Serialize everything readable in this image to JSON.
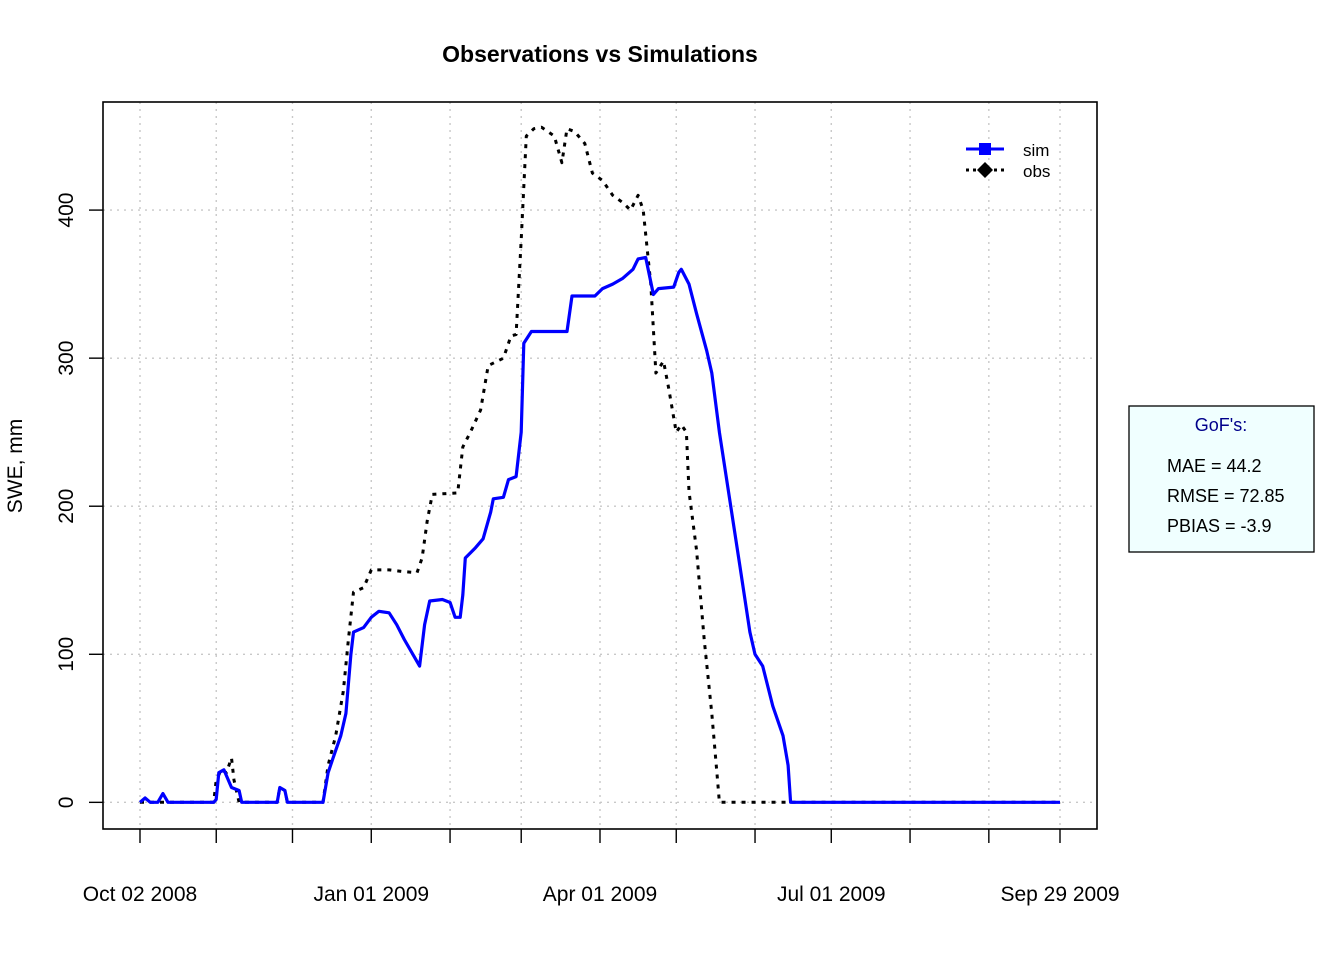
{
  "chart_data": {
    "type": "line",
    "title": "Observations vs Simulations",
    "xlabel": "",
    "ylabel": "SWE, mm",
    "xlim": [
      "2008-10-02",
      "2009-09-29"
    ],
    "ylim": [
      -18,
      473
    ],
    "x_tick_dates": [
      "2008-10-02",
      "2008-11-01",
      "2008-12-01",
      "2009-01-01",
      "2009-02-01",
      "2009-03-01",
      "2009-04-01",
      "2009-05-01",
      "2009-06-01",
      "2009-07-01",
      "2009-08-01",
      "2009-09-01",
      "2009-09-29"
    ],
    "x_tick_labels": [
      {
        "date": "2008-10-02",
        "label": "Oct 02 2008"
      },
      {
        "date": "2009-01-01",
        "label": "Jan 01 2009"
      },
      {
        "date": "2009-04-01",
        "label": "Apr 01 2009"
      },
      {
        "date": "2009-07-01",
        "label": "Jul 01 2009"
      },
      {
        "date": "2009-09-29",
        "label": "Sep 29 2009"
      }
    ],
    "y_ticks": [
      0,
      100,
      200,
      300,
      400
    ],
    "grid": true,
    "legend_position": "top-right",
    "series": [
      {
        "name": "sim",
        "color": "#0000ff",
        "line_style": "solid",
        "points": [
          [
            "2008-10-02",
            0
          ],
          [
            "2008-10-04",
            3
          ],
          [
            "2008-10-06",
            0
          ],
          [
            "2008-10-09",
            0
          ],
          [
            "2008-10-11",
            6
          ],
          [
            "2008-10-13",
            0
          ],
          [
            "2008-10-31",
            0
          ],
          [
            "2008-11-01",
            2
          ],
          [
            "2008-11-02",
            20
          ],
          [
            "2008-11-04",
            22
          ],
          [
            "2008-11-07",
            10
          ],
          [
            "2008-11-10",
            8
          ],
          [
            "2008-11-11",
            0
          ],
          [
            "2008-11-25",
            0
          ],
          [
            "2008-11-26",
            10
          ],
          [
            "2008-11-28",
            8
          ],
          [
            "2008-11-29",
            0
          ],
          [
            "2008-12-13",
            0
          ],
          [
            "2008-12-15",
            20
          ],
          [
            "2008-12-17",
            30
          ],
          [
            "2008-12-20",
            45
          ],
          [
            "2008-12-22",
            60
          ],
          [
            "2008-12-24",
            100
          ],
          [
            "2008-12-25",
            115
          ],
          [
            "2008-12-29",
            118
          ],
          [
            "2009-01-01",
            125
          ],
          [
            "2009-01-04",
            129
          ],
          [
            "2009-01-08",
            128
          ],
          [
            "2009-01-11",
            120
          ],
          [
            "2009-01-14",
            110
          ],
          [
            "2009-01-18",
            98
          ],
          [
            "2009-01-20",
            92
          ],
          [
            "2009-01-22",
            120
          ],
          [
            "2009-01-24",
            136
          ],
          [
            "2009-01-29",
            137
          ],
          [
            "2009-02-01",
            135
          ],
          [
            "2009-02-03",
            125
          ],
          [
            "2009-02-05",
            125
          ],
          [
            "2009-02-06",
            140
          ],
          [
            "2009-02-07",
            165
          ],
          [
            "2009-02-11",
            172
          ],
          [
            "2009-02-14",
            178
          ],
          [
            "2009-02-17",
            196
          ],
          [
            "2009-02-18",
            205
          ],
          [
            "2009-02-22",
            206
          ],
          [
            "2009-02-24",
            218
          ],
          [
            "2009-02-27",
            220
          ],
          [
            "2009-03-01",
            250
          ],
          [
            "2009-03-02",
            310
          ],
          [
            "2009-03-05",
            318
          ],
          [
            "2009-03-19",
            318
          ],
          [
            "2009-03-21",
            342
          ],
          [
            "2009-03-30",
            342
          ],
          [
            "2009-04-02",
            347
          ],
          [
            "2009-04-06",
            350
          ],
          [
            "2009-04-10",
            354
          ],
          [
            "2009-04-14",
            360
          ],
          [
            "2009-04-16",
            367
          ],
          [
            "2009-04-19",
            368
          ],
          [
            "2009-04-22",
            343
          ],
          [
            "2009-04-24",
            347
          ],
          [
            "2009-04-30",
            348
          ],
          [
            "2009-05-02",
            358
          ],
          [
            "2009-05-03",
            360
          ],
          [
            "2009-05-06",
            350
          ],
          [
            "2009-05-09",
            330
          ],
          [
            "2009-05-13",
            305
          ],
          [
            "2009-05-15",
            290
          ],
          [
            "2009-05-18",
            250
          ],
          [
            "2009-05-22",
            205
          ],
          [
            "2009-05-26",
            160
          ],
          [
            "2009-05-30",
            115
          ],
          [
            "2009-06-01",
            100
          ],
          [
            "2009-06-04",
            92
          ],
          [
            "2009-06-08",
            65
          ],
          [
            "2009-06-12",
            45
          ],
          [
            "2009-06-14",
            25
          ],
          [
            "2009-06-15",
            0
          ],
          [
            "2009-09-29",
            0
          ]
        ]
      },
      {
        "name": "obs",
        "color": "#000000",
        "line_style": "dotted",
        "points": [
          [
            "2008-10-02",
            0
          ],
          [
            "2008-10-31",
            0
          ],
          [
            "2008-11-01",
            15
          ],
          [
            "2008-11-03",
            22
          ],
          [
            "2008-11-05",
            20
          ],
          [
            "2008-11-07",
            30
          ],
          [
            "2008-11-08",
            15
          ],
          [
            "2008-11-10",
            0
          ],
          [
            "2008-11-25",
            0
          ],
          [
            "2008-11-26",
            10
          ],
          [
            "2008-11-28",
            8
          ],
          [
            "2008-11-29",
            0
          ],
          [
            "2008-12-13",
            0
          ],
          [
            "2008-12-15",
            25
          ],
          [
            "2008-12-18",
            45
          ],
          [
            "2008-12-21",
            75
          ],
          [
            "2008-12-23",
            110
          ],
          [
            "2008-12-25",
            142
          ],
          [
            "2008-12-29",
            145
          ],
          [
            "2009-01-01",
            157
          ],
          [
            "2009-01-08",
            157
          ],
          [
            "2009-01-13",
            156
          ],
          [
            "2009-01-19",
            155
          ],
          [
            "2009-01-21",
            165
          ],
          [
            "2009-01-23",
            190
          ],
          [
            "2009-01-25",
            208
          ],
          [
            "2009-02-04",
            209
          ],
          [
            "2009-02-06",
            240
          ],
          [
            "2009-02-09",
            250
          ],
          [
            "2009-02-13",
            265
          ],
          [
            "2009-02-16",
            295
          ],
          [
            "2009-02-22",
            300
          ],
          [
            "2009-02-25",
            315
          ],
          [
            "2009-02-27",
            316
          ],
          [
            "2009-03-01",
            380
          ],
          [
            "2009-03-03",
            450
          ],
          [
            "2009-03-06",
            455
          ],
          [
            "2009-03-09",
            456
          ],
          [
            "2009-03-14",
            450
          ],
          [
            "2009-03-17",
            432
          ],
          [
            "2009-03-19",
            455
          ],
          [
            "2009-03-22",
            453
          ],
          [
            "2009-03-26",
            445
          ],
          [
            "2009-03-29",
            425
          ],
          [
            "2009-04-02",
            420
          ],
          [
            "2009-04-06",
            410
          ],
          [
            "2009-04-10",
            405
          ],
          [
            "2009-04-13",
            400
          ],
          [
            "2009-04-16",
            410
          ],
          [
            "2009-04-18",
            400
          ],
          [
            "2009-04-21",
            350
          ],
          [
            "2009-04-23",
            290
          ],
          [
            "2009-04-26",
            298
          ],
          [
            "2009-04-28",
            280
          ],
          [
            "2009-05-01",
            250
          ],
          [
            "2009-05-03",
            255
          ],
          [
            "2009-05-05",
            250
          ],
          [
            "2009-05-06",
            210
          ],
          [
            "2009-05-09",
            170
          ],
          [
            "2009-05-12",
            110
          ],
          [
            "2009-05-15",
            60
          ],
          [
            "2009-05-17",
            20
          ],
          [
            "2009-05-18",
            0
          ],
          [
            "2009-09-29",
            0
          ]
        ]
      }
    ],
    "gof_box": {
      "title": "GoF's:",
      "lines": [
        "MAE = 44.2",
        "RMSE = 72.85",
        "PBIAS = -3.9"
      ]
    }
  }
}
